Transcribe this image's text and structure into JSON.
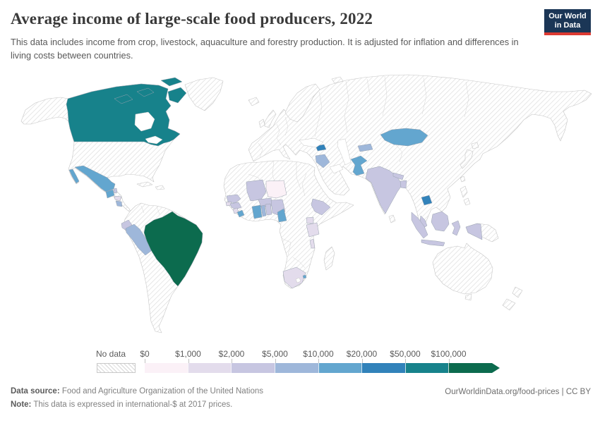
{
  "header": {
    "title": "Average income of large-scale food producers, 2022",
    "subtitle": "This data includes income from crop, livestock, aquaculture and forestry production. It is adjusted for inflation and differences in living costs between countries."
  },
  "logo": {
    "line1": "Our World",
    "line2": "in Data"
  },
  "legend": {
    "no_data_label": "No data",
    "tick_labels": [
      "$0",
      "$1,000",
      "$2,000",
      "$5,000",
      "$10,000",
      "$20,000",
      "$50,000",
      "$100,000"
    ]
  },
  "chart_data": {
    "type": "choropleth_map",
    "title": "Average income of large-scale food producers, 2022",
    "year": 2022,
    "unit": "international-$ at 2017 prices",
    "legend_position": "bottom",
    "bins": [
      "$0-$1,000",
      "$1,000-$2,000",
      "$2,000-$5,000",
      "$5,000-$10,000",
      "$10,000-$20,000",
      "$20,000-$50,000",
      "$50,000-$100,000",
      "$100,000+"
    ],
    "bin_colors": [
      "#fbf1f7",
      "#e3dcec",
      "#c7c6e1",
      "#9eb7da",
      "#63a6cf",
      "#3182ba",
      "#17828b",
      "#0c6b4e"
    ],
    "no_data_pattern": "diagonal-hatch",
    "countries": [
      {
        "id": "canada",
        "name": "Canada",
        "color_index": 6
      },
      {
        "id": "mexico",
        "name": "Mexico",
        "color_index": 4
      },
      {
        "id": "guatemala",
        "name": "Guatemala",
        "color_index": 4
      },
      {
        "id": "belize",
        "name": "Belize",
        "color_index": 2
      },
      {
        "id": "honduras",
        "name": "Honduras",
        "color_index": 1
      },
      {
        "id": "nicaragua",
        "name": "Nicaragua",
        "color_index": 3
      },
      {
        "id": "ecuador",
        "name": "Ecuador",
        "color_index": 2
      },
      {
        "id": "peru",
        "name": "Peru",
        "color_index": 3
      },
      {
        "id": "brazil",
        "name": "Brazil",
        "color_index": 7
      },
      {
        "id": "senegal",
        "name": "Senegal",
        "color_index": 2
      },
      {
        "id": "guinea-bissau",
        "name": "Guinea-Bissau",
        "color_index": 1
      },
      {
        "id": "guinea",
        "name": "Guinea",
        "color_index": 2
      },
      {
        "id": "sierra-leone",
        "name": "Sierra Leone",
        "color_index": 1
      },
      {
        "id": "liberia",
        "name": "Liberia",
        "color_index": 4
      },
      {
        "id": "mali",
        "name": "Mali",
        "color_index": 2
      },
      {
        "id": "burkina-faso",
        "name": "Burkina Faso",
        "color_index": 2
      },
      {
        "id": "niger",
        "name": "Niger",
        "color_index": 0
      },
      {
        "id": "ghana",
        "name": "Ghana",
        "color_index": 4
      },
      {
        "id": "togo",
        "name": "Togo",
        "color_index": 3
      },
      {
        "id": "benin",
        "name": "Benin",
        "color_index": 2
      },
      {
        "id": "nigeria",
        "name": "Nigeria",
        "color_index": 2
      },
      {
        "id": "cameroon",
        "name": "Cameroon",
        "color_index": 4
      },
      {
        "id": "ethiopia",
        "name": "Ethiopia",
        "color_index": 2
      },
      {
        "id": "uganda",
        "name": "Uganda",
        "color_index": 1
      },
      {
        "id": "tanzania",
        "name": "Tanzania",
        "color_index": 1
      },
      {
        "id": "malawi",
        "name": "Malawi",
        "color_index": 1
      },
      {
        "id": "south-africa",
        "name": "South Africa",
        "color_index": 1
      },
      {
        "id": "eswatini",
        "name": "Eswatini",
        "color_index": 4
      },
      {
        "id": "azerbaijan",
        "name": "Azerbaijan",
        "color_index": 5
      },
      {
        "id": "iraq",
        "name": "Iraq",
        "color_index": 3
      },
      {
        "id": "kyrgyzstan",
        "name": "Kyrgyzstan",
        "color_index": 3
      },
      {
        "id": "mongolia",
        "name": "Mongolia",
        "color_index": 4
      },
      {
        "id": "pakistan",
        "name": "Pakistan",
        "color_index": 4
      },
      {
        "id": "india",
        "name": "India",
        "color_index": 2
      },
      {
        "id": "nepal",
        "name": "Nepal",
        "color_index": 2
      },
      {
        "id": "bangladesh",
        "name": "Bangladesh",
        "color_index": 2
      },
      {
        "id": "cambodia",
        "name": "Cambodia",
        "color_index": 5
      },
      {
        "id": "malaysia",
        "name": "Malaysia",
        "color_index": 2
      },
      {
        "id": "indonesia",
        "name": "Indonesia",
        "color_index": 2
      }
    ],
    "no_data_regions": [
      "United States",
      "Greenland",
      "Europe",
      "Russia",
      "China",
      "Kazakhstan",
      "Iran",
      "Saudi Arabia",
      "Turkey",
      "Egypt",
      "Algeria",
      "Libya",
      "Sudan",
      "DR Congo",
      "Kenya",
      "Mozambique",
      "Madagascar",
      "Colombia",
      "Venezuela",
      "Bolivia",
      "Argentina",
      "Chile",
      "Australia",
      "Japan",
      "Thailand",
      "Vietnam",
      "Philippines",
      "Papua New Guinea",
      "New Zealand",
      "Cuba"
    ]
  },
  "footer": {
    "data_source_label": "Data source:",
    "data_source": "Food and Agriculture Organization of the United Nations",
    "note_label": "Note:",
    "note": "This data is expressed in international-$ at 2017 prices.",
    "link": "OurWorldinData.org/food-prices",
    "separator": "|",
    "license": "CC BY"
  }
}
